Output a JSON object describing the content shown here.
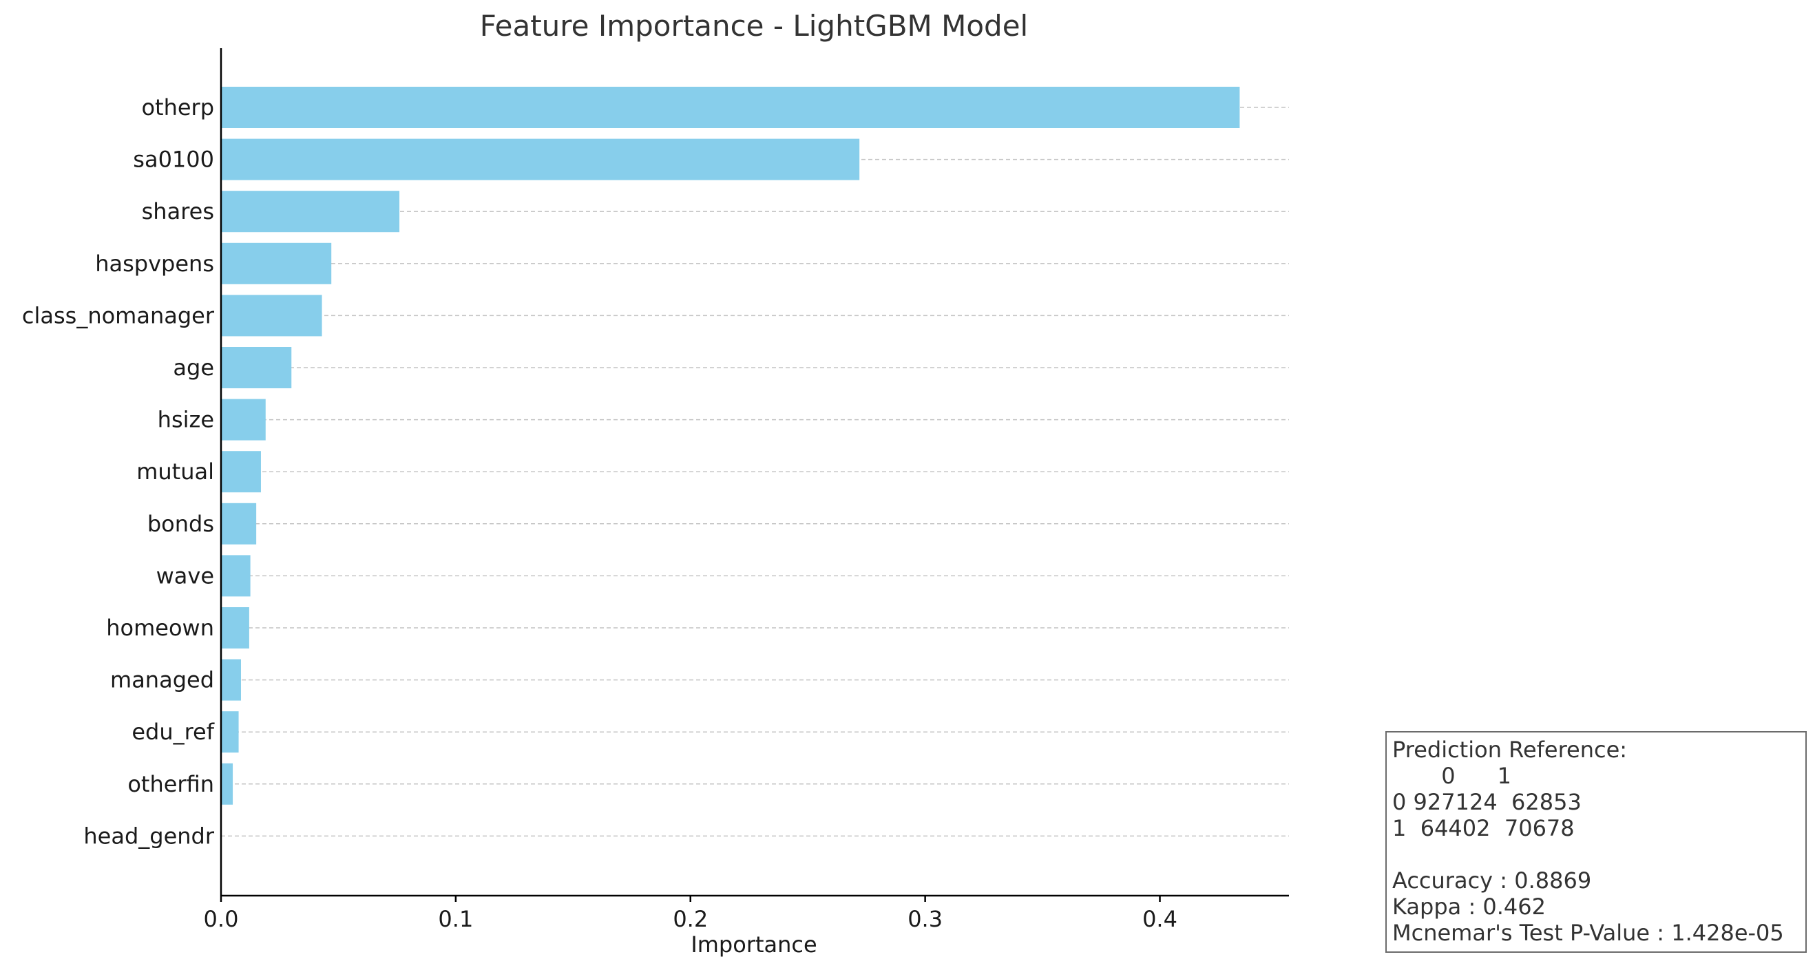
{
  "chart_data": {
    "type": "bar",
    "orientation": "horizontal",
    "title": "Feature Importance - LightGBM Model",
    "xlabel": "Importance",
    "ylabel": "",
    "xlim": [
      0.0,
      0.455
    ],
    "x_ticks": [
      0.0,
      0.1,
      0.2,
      0.3,
      0.4
    ],
    "x_tick_labels": [
      "0.0",
      "0.1",
      "0.2",
      "0.3",
      "0.4"
    ],
    "grid": "horizontal dashed",
    "bar_color": "#87ceeb",
    "categories": [
      "otherp",
      "sa0100",
      "shares",
      "haspvpens",
      "class_nomanager",
      "age",
      "hsize",
      "mutual",
      "bonds",
      "wave",
      "homeown",
      "managed",
      "edu_ref",
      "otherfin",
      "head_gendr"
    ],
    "values": [
      0.434,
      0.272,
      0.076,
      0.047,
      0.043,
      0.03,
      0.019,
      0.017,
      0.015,
      0.0125,
      0.012,
      0.0085,
      0.0075,
      0.005,
      0.0
    ]
  },
  "info_box": {
    "lines": [
      "Prediction Reference:",
      "       0      1",
      "0 927124  62853",
      "1  64402  70678",
      "",
      "Accuracy : 0.8869",
      "Kappa : 0.462",
      "Mcnemar's Test P-Value : 1.428e-05"
    ]
  }
}
